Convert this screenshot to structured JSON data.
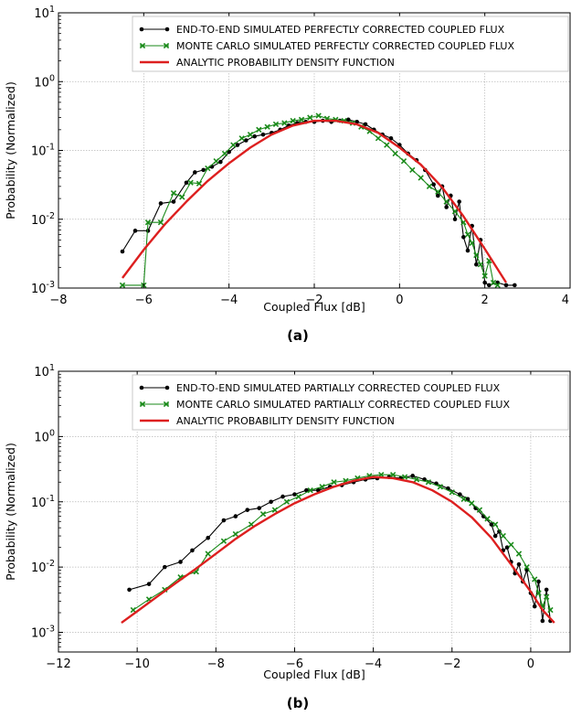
{
  "chart_data": [
    {
      "type": "line",
      "caption": "(a)",
      "xlabel": "Coupled Flux [dB]",
      "ylabel": "Probability (Normalized)",
      "xlim": [
        -8,
        4
      ],
      "ylim": [
        0.001,
        10
      ],
      "yscale": "log",
      "grid": true,
      "legend_position": "top-right",
      "xticks": [
        -8,
        -6,
        -4,
        -2,
        0,
        2,
        4
      ],
      "xtick_labels": [
        "−8",
        "−6",
        "−4",
        "−2",
        "0",
        "2",
        "4"
      ],
      "yticks": [
        0.001,
        0.01,
        0.1,
        1,
        10
      ],
      "ytick_labels": [
        {
          "base": "10",
          "exp": "-3"
        },
        {
          "base": "10",
          "exp": "-2"
        },
        {
          "base": "10",
          "exp": "-1"
        },
        {
          "base": "10",
          "exp": "0"
        },
        {
          "base": "10",
          "exp": "1"
        }
      ],
      "series": [
        {
          "name": "END-TO-END SIMULATED PERFECTLY CORRECTED COUPLED FLUX",
          "color": "#000000",
          "marker": "dot",
          "points": [
            [
              -6.5,
              0.0034
            ],
            [
              -6.2,
              0.0068
            ],
            [
              -5.9,
              0.0068
            ],
            [
              -5.6,
              0.017
            ],
            [
              -5.3,
              0.018
            ],
            [
              -5.0,
              0.034
            ],
            [
              -4.8,
              0.048
            ],
            [
              -4.6,
              0.052
            ],
            [
              -4.4,
              0.058
            ],
            [
              -4.2,
              0.068
            ],
            [
              -4.0,
              0.095
            ],
            [
              -3.8,
              0.12
            ],
            [
              -3.6,
              0.14
            ],
            [
              -3.4,
              0.16
            ],
            [
              -3.2,
              0.17
            ],
            [
              -3.0,
              0.18
            ],
            [
              -2.8,
              0.2
            ],
            [
              -2.6,
              0.23
            ],
            [
              -2.4,
              0.25
            ],
            [
              -2.2,
              0.26
            ],
            [
              -2.0,
              0.26
            ],
            [
              -1.8,
              0.27
            ],
            [
              -1.6,
              0.26
            ],
            [
              -1.4,
              0.27
            ],
            [
              -1.2,
              0.28
            ],
            [
              -1.0,
              0.26
            ],
            [
              -0.8,
              0.24
            ],
            [
              -0.6,
              0.2
            ],
            [
              -0.4,
              0.17
            ],
            [
              -0.2,
              0.15
            ],
            [
              0.0,
              0.12
            ],
            [
              0.2,
              0.09
            ],
            [
              0.4,
              0.072
            ],
            [
              0.6,
              0.052
            ],
            [
              0.8,
              0.032
            ],
            [
              0.9,
              0.022
            ],
            [
              1.0,
              0.03
            ],
            [
              1.1,
              0.015
            ],
            [
              1.2,
              0.022
            ],
            [
              1.3,
              0.01
            ],
            [
              1.4,
              0.018
            ],
            [
              1.5,
              0.0055
            ],
            [
              1.6,
              0.0035
            ],
            [
              1.7,
              0.008
            ],
            [
              1.8,
              0.0022
            ],
            [
              1.9,
              0.005
            ],
            [
              2.0,
              0.0012
            ],
            [
              2.1,
              0.0011
            ],
            [
              2.3,
              0.0012
            ],
            [
              2.5,
              0.0011
            ],
            [
              2.7,
              0.0011
            ]
          ]
        },
        {
          "name": "MONTE CARLO SIMULATED PERFECTLY CORRECTED COUPLED FLUX",
          "color": "#1a8a1a",
          "marker": "x",
          "points": [
            [
              -6.5,
              0.0011
            ],
            [
              -6.0,
              0.0011
            ],
            [
              -5.9,
              0.009
            ],
            [
              -5.6,
              0.009
            ],
            [
              -5.3,
              0.024
            ],
            [
              -5.1,
              0.021
            ],
            [
              -4.9,
              0.034
            ],
            [
              -4.7,
              0.033
            ],
            [
              -4.5,
              0.055
            ],
            [
              -4.3,
              0.07
            ],
            [
              -4.1,
              0.09
            ],
            [
              -3.9,
              0.12
            ],
            [
              -3.7,
              0.15
            ],
            [
              -3.5,
              0.17
            ],
            [
              -3.3,
              0.2
            ],
            [
              -3.1,
              0.22
            ],
            [
              -2.9,
              0.24
            ],
            [
              -2.7,
              0.25
            ],
            [
              -2.5,
              0.27
            ],
            [
              -2.3,
              0.28
            ],
            [
              -2.1,
              0.3
            ],
            [
              -1.9,
              0.32
            ],
            [
              -1.7,
              0.29
            ],
            [
              -1.5,
              0.28
            ],
            [
              -1.3,
              0.27
            ],
            [
              -1.1,
              0.25
            ],
            [
              -0.9,
              0.22
            ],
            [
              -0.7,
              0.19
            ],
            [
              -0.5,
              0.15
            ],
            [
              -0.3,
              0.12
            ],
            [
              -0.1,
              0.09
            ],
            [
              0.1,
              0.07
            ],
            [
              0.3,
              0.052
            ],
            [
              0.5,
              0.04
            ],
            [
              0.7,
              0.03
            ],
            [
              0.9,
              0.025
            ],
            [
              1.1,
              0.018
            ],
            [
              1.3,
              0.013
            ],
            [
              1.5,
              0.009
            ],
            [
              1.6,
              0.006
            ],
            [
              1.7,
              0.0045
            ],
            [
              1.8,
              0.003
            ],
            [
              1.9,
              0.0022
            ],
            [
              2.0,
              0.0015
            ],
            [
              2.1,
              0.0025
            ],
            [
              2.2,
              0.0012
            ],
            [
              2.3,
              0.0011
            ]
          ]
        },
        {
          "name": "ANALYTIC PROBABILITY DENSITY FUNCTION",
          "color": "#dd1f1f",
          "marker": "none",
          "points": [
            [
              -6.5,
              0.0014
            ],
            [
              -6.0,
              0.0036
            ],
            [
              -5.5,
              0.0085
            ],
            [
              -5.0,
              0.018
            ],
            [
              -4.5,
              0.036
            ],
            [
              -4.0,
              0.065
            ],
            [
              -3.5,
              0.11
            ],
            [
              -3.0,
              0.17
            ],
            [
              -2.5,
              0.23
            ],
            [
              -2.0,
              0.27
            ],
            [
              -1.5,
              0.27
            ],
            [
              -1.0,
              0.24
            ],
            [
              -0.5,
              0.18
            ],
            [
              0.0,
              0.11
            ],
            [
              0.5,
              0.062
            ],
            [
              1.0,
              0.029
            ],
            [
              1.5,
              0.011
            ],
            [
              2.0,
              0.0037
            ],
            [
              2.5,
              0.0012
            ]
          ]
        }
      ]
    },
    {
      "type": "line",
      "caption": "(b)",
      "xlabel": "Coupled Flux [dB]",
      "ylabel": "Probability (Normalized)",
      "xlim": [
        -12,
        1
      ],
      "ylim": [
        0.0005,
        10
      ],
      "yscale": "log",
      "grid": true,
      "legend_position": "top-right",
      "xticks": [
        -12,
        -10,
        -8,
        -6,
        -4,
        -2,
        0
      ],
      "xtick_labels": [
        "−12",
        "−10",
        "−8",
        "−6",
        "−4",
        "−2",
        "0"
      ],
      "yticks": [
        0.001,
        0.01,
        0.1,
        1,
        10
      ],
      "ytick_labels": [
        {
          "base": "10",
          "exp": "-3"
        },
        {
          "base": "10",
          "exp": "-2"
        },
        {
          "base": "10",
          "exp": "-1"
        },
        {
          "base": "10",
          "exp": "0"
        },
        {
          "base": "10",
          "exp": "1"
        }
      ],
      "series": [
        {
          "name": "END-TO-END SIMULATED PARTIALLY CORRECTED COUPLED FLUX",
          "color": "#000000",
          "marker": "dot",
          "points": [
            [
              -10.2,
              0.0045
            ],
            [
              -9.7,
              0.0055
            ],
            [
              -9.3,
              0.01
            ],
            [
              -8.9,
              0.012
            ],
            [
              -8.6,
              0.018
            ],
            [
              -8.2,
              0.028
            ],
            [
              -7.8,
              0.052
            ],
            [
              -7.5,
              0.06
            ],
            [
              -7.2,
              0.075
            ],
            [
              -6.9,
              0.08
            ],
            [
              -6.6,
              0.1
            ],
            [
              -6.3,
              0.12
            ],
            [
              -6.0,
              0.13
            ],
            [
              -5.7,
              0.15
            ],
            [
              -5.4,
              0.15
            ],
            [
              -5.1,
              0.17
            ],
            [
              -4.8,
              0.18
            ],
            [
              -4.5,
              0.2
            ],
            [
              -4.2,
              0.22
            ],
            [
              -3.9,
              0.23
            ],
            [
              -3.6,
              0.24
            ],
            [
              -3.3,
              0.23
            ],
            [
              -3.0,
              0.25
            ],
            [
              -2.7,
              0.22
            ],
            [
              -2.4,
              0.19
            ],
            [
              -2.1,
              0.16
            ],
            [
              -1.8,
              0.13
            ],
            [
              -1.6,
              0.11
            ],
            [
              -1.4,
              0.08
            ],
            [
              -1.2,
              0.06
            ],
            [
              -1.0,
              0.045
            ],
            [
              -0.9,
              0.03
            ],
            [
              -0.8,
              0.035
            ],
            [
              -0.7,
              0.018
            ],
            [
              -0.6,
              0.02
            ],
            [
              -0.5,
              0.012
            ],
            [
              -0.4,
              0.008
            ],
            [
              -0.3,
              0.011
            ],
            [
              -0.2,
              0.006
            ],
            [
              -0.1,
              0.009
            ],
            [
              0.0,
              0.004
            ],
            [
              0.1,
              0.0025
            ],
            [
              0.2,
              0.006
            ],
            [
              0.3,
              0.0015
            ],
            [
              0.4,
              0.0045
            ],
            [
              0.5,
              0.0015
            ]
          ]
        },
        {
          "name": "MONTE CARLO SIMULATED PARTIALLY CORRECTED COUPLED FLUX",
          "color": "#1a8a1a",
          "marker": "x",
          "points": [
            [
              -10.1,
              0.0022
            ],
            [
              -9.7,
              0.0032
            ],
            [
              -9.3,
              0.0045
            ],
            [
              -8.9,
              0.007
            ],
            [
              -8.5,
              0.0085
            ],
            [
              -8.2,
              0.016
            ],
            [
              -7.8,
              0.025
            ],
            [
              -7.5,
              0.032
            ],
            [
              -7.1,
              0.045
            ],
            [
              -6.8,
              0.065
            ],
            [
              -6.5,
              0.075
            ],
            [
              -6.2,
              0.1
            ],
            [
              -5.9,
              0.12
            ],
            [
              -5.6,
              0.15
            ],
            [
              -5.3,
              0.17
            ],
            [
              -5.0,
              0.2
            ],
            [
              -4.7,
              0.21
            ],
            [
              -4.4,
              0.23
            ],
            [
              -4.1,
              0.25
            ],
            [
              -3.8,
              0.26
            ],
            [
              -3.5,
              0.26
            ],
            [
              -3.2,
              0.24
            ],
            [
              -2.9,
              0.22
            ],
            [
              -2.6,
              0.2
            ],
            [
              -2.3,
              0.17
            ],
            [
              -2.0,
              0.14
            ],
            [
              -1.7,
              0.11
            ],
            [
              -1.5,
              0.095
            ],
            [
              -1.3,
              0.075
            ],
            [
              -1.1,
              0.055
            ],
            [
              -0.9,
              0.045
            ],
            [
              -0.7,
              0.03
            ],
            [
              -0.5,
              0.022
            ],
            [
              -0.3,
              0.016
            ],
            [
              -0.1,
              0.01
            ],
            [
              0.1,
              0.0065
            ],
            [
              0.2,
              0.004
            ],
            [
              0.3,
              0.0025
            ],
            [
              0.4,
              0.0035
            ],
            [
              0.5,
              0.0022
            ]
          ]
        },
        {
          "name": "ANALYTIC PROBABILITY DENSITY FUNCTION",
          "color": "#dd1f1f",
          "marker": "none",
          "points": [
            [
              -10.4,
              0.0014
            ],
            [
              -10.0,
              0.0021
            ],
            [
              -9.5,
              0.0035
            ],
            [
              -9.0,
              0.0058
            ],
            [
              -8.5,
              0.0095
            ],
            [
              -8.0,
              0.016
            ],
            [
              -7.5,
              0.027
            ],
            [
              -7.0,
              0.043
            ],
            [
              -6.5,
              0.065
            ],
            [
              -6.0,
              0.095
            ],
            [
              -5.5,
              0.13
            ],
            [
              -5.0,
              0.17
            ],
            [
              -4.5,
              0.21
            ],
            [
              -4.0,
              0.24
            ],
            [
              -3.5,
              0.23
            ],
            [
              -3.0,
              0.2
            ],
            [
              -2.5,
              0.15
            ],
            [
              -2.0,
              0.1
            ],
            [
              -1.5,
              0.058
            ],
            [
              -1.0,
              0.028
            ],
            [
              -0.5,
              0.011
            ],
            [
              0.0,
              0.0042
            ],
            [
              0.3,
              0.0022
            ],
            [
              0.6,
              0.0014
            ]
          ]
        }
      ]
    }
  ]
}
